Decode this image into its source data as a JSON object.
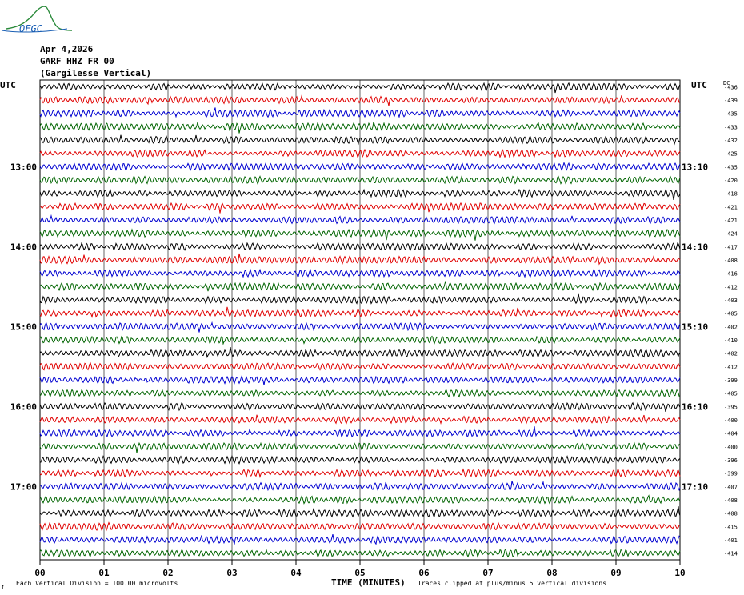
{
  "logo": {
    "text": "OFGC",
    "colors": {
      "text": "#1a5fb4",
      "curve": "#2a8a3a"
    }
  },
  "header": {
    "date": "Apr 4,2026",
    "station": "GARF HHZ FR 00",
    "location": "(Gargilesse Vertical)"
  },
  "utc_left": "UTC",
  "utc_right": "UTC",
  "dc_header": "DC",
  "footer": {
    "scale_mark": "↑",
    "vertical_division": "Each Vertical Division =  100.00 microvolts",
    "clip_note": "Traces clipped at plus/minus 5 vertical divisions"
  },
  "chart_data": {
    "type": "line",
    "xlabel": "TIME (MINUTES)",
    "x_ticks": [
      "00",
      "01",
      "02",
      "03",
      "04",
      "05",
      "06",
      "07",
      "08",
      "09",
      "10"
    ],
    "xlim": [
      0,
      10
    ],
    "grid": true,
    "trace_colors": [
      "#000000",
      "#e00000",
      "#0000d0",
      "#006400"
    ],
    "left_labels": [
      {
        "row": 6,
        "text": "13:00"
      },
      {
        "row": 12,
        "text": "14:00"
      },
      {
        "row": 18,
        "text": "15:00"
      },
      {
        "row": 24,
        "text": "16:00"
      },
      {
        "row": 30,
        "text": "17:00"
      }
    ],
    "right_labels": [
      {
        "row": 6,
        "text": "13:10"
      },
      {
        "row": 12,
        "text": "14:10"
      },
      {
        "row": 18,
        "text": "15:10"
      },
      {
        "row": 24,
        "text": "16:10"
      },
      {
        "row": 30,
        "text": "17:10"
      }
    ],
    "dc_offsets": [
      -436,
      -439,
      -435,
      -433,
      -432,
      -425,
      -435,
      -420,
      -418,
      -421,
      -421,
      -424,
      -417,
      -408,
      -416,
      -412,
      -403,
      -405,
      -402,
      -410,
      -402,
      -412,
      -399,
      -405,
      -395,
      -400,
      -404,
      -400,
      -396,
      -399,
      -407,
      -408,
      -408,
      -415,
      -401,
      -414
    ]
  }
}
